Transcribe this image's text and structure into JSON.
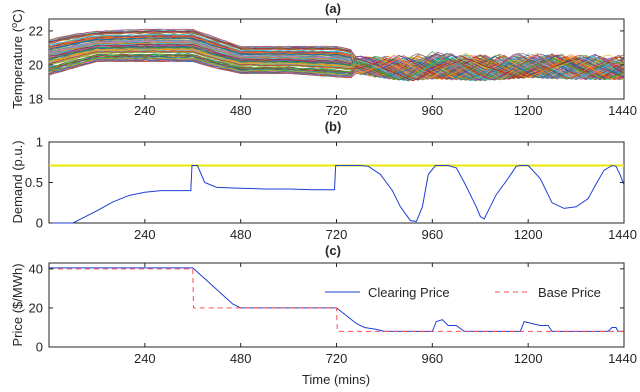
{
  "chart_data": [
    {
      "panel": "(a)",
      "type": "line",
      "title": "(a)",
      "ylabel": "Temperature (°C)",
      "xlim": [
        0,
        1440
      ],
      "ylim": [
        18,
        22.7
      ],
      "x_ticks": [
        240,
        480,
        720,
        960,
        1200,
        1440
      ],
      "y_ticks": [
        18,
        20,
        22
      ],
      "grid": false,
      "description_series": "several hundred overlapping colored temperature trajectories",
      "envelope": {
        "x": [
          0,
          60,
          120,
          240,
          360,
          420,
          480,
          600,
          720,
          780,
          840,
          900,
          960,
          1080,
          1200,
          1320,
          1440
        ],
        "upper": [
          21.5,
          21.8,
          22.0,
          22.1,
          22.1,
          21.6,
          21.1,
          21.1,
          21.1,
          20.8,
          20.9,
          21.0,
          21.2,
          21.0,
          21.1,
          21.0,
          21.0
        ],
        "lower": [
          19.4,
          19.8,
          20.2,
          20.2,
          20.2,
          19.8,
          19.5,
          19.5,
          19.3,
          19.2,
          18.9,
          18.7,
          18.8,
          18.7,
          18.9,
          18.8,
          18.8
        ]
      }
    },
    {
      "panel": "(b)",
      "type": "line",
      "title": "(b)",
      "ylabel": "Demand (p.u.)",
      "xlim": [
        0,
        1440
      ],
      "ylim": [
        0,
        1
      ],
      "x_ticks": [
        240,
        480,
        720,
        960,
        1200,
        1440
      ],
      "y_ticks": [
        "0",
        "0.5",
        "1"
      ],
      "grid": false,
      "series": [
        {
          "color": "#e8e800",
          "x": [
            0,
            1440
          ],
          "y": [
            0.71,
            0.71
          ]
        },
        {
          "color": "#1f3fd6",
          "x": [
            0,
            60,
            80,
            120,
            160,
            200,
            240,
            280,
            320,
            355,
            358,
            365,
            372,
            390,
            420,
            480,
            540,
            600,
            660,
            715,
            718,
            725,
            732,
            780,
            800,
            830,
            860,
            880,
            905,
            920,
            935,
            950,
            968,
            980,
            1000,
            1020,
            1040,
            1060,
            1070,
            1080,
            1090,
            1100,
            1120,
            1150,
            1170,
            1180,
            1200,
            1230,
            1260,
            1290,
            1320,
            1350,
            1370,
            1390,
            1410,
            1420,
            1430,
            1440
          ],
          "y": [
            0.0,
            0.0,
            0.05,
            0.15,
            0.26,
            0.34,
            0.38,
            0.4,
            0.4,
            0.4,
            0.71,
            0.71,
            0.71,
            0.5,
            0.44,
            0.43,
            0.42,
            0.42,
            0.41,
            0.41,
            0.71,
            0.71,
            0.71,
            0.71,
            0.7,
            0.6,
            0.4,
            0.2,
            0.03,
            0.02,
            0.2,
            0.6,
            0.71,
            0.71,
            0.71,
            0.68,
            0.5,
            0.3,
            0.2,
            0.08,
            0.05,
            0.15,
            0.35,
            0.55,
            0.7,
            0.71,
            0.71,
            0.55,
            0.25,
            0.18,
            0.2,
            0.3,
            0.48,
            0.65,
            0.71,
            0.7,
            0.6,
            0.47
          ]
        }
      ]
    },
    {
      "panel": "(c)",
      "type": "line",
      "title": "(c)",
      "ylabel": "Price ($/MWh)",
      "xlabel": "Time (mins)",
      "xlim": [
        0,
        1440
      ],
      "ylim": [
        0,
        43
      ],
      "x_ticks": [
        240,
        480,
        720,
        960,
        1200,
        1440
      ],
      "y_ticks": [
        0,
        20,
        40
      ],
      "grid": false,
      "legend_position": "right-center",
      "series": [
        {
          "name": "Clearing Price",
          "color": "#1f3fd6",
          "style": "solid",
          "x": [
            0,
            360,
            460,
            480,
            720,
            770,
            790,
            820,
            840,
            960,
            970,
            985,
            1000,
            1020,
            1040,
            1180,
            1190,
            1210,
            1230,
            1250,
            1260,
            1400,
            1410,
            1420,
            1425,
            1440
          ],
          "y": [
            40.5,
            40.5,
            22,
            20,
            20,
            12,
            10,
            9,
            8,
            8,
            13,
            14,
            11,
            11,
            8,
            8,
            13,
            12,
            11,
            11,
            8,
            8,
            10,
            10,
            8,
            8
          ]
        },
        {
          "name": "Base Price",
          "color": "#ff4d4d",
          "style": "dashed",
          "x": [
            0,
            360,
            362,
            480,
            720,
            722,
            1440
          ],
          "y": [
            40,
            40,
            20,
            20,
            20,
            8,
            8
          ]
        }
      ]
    }
  ]
}
